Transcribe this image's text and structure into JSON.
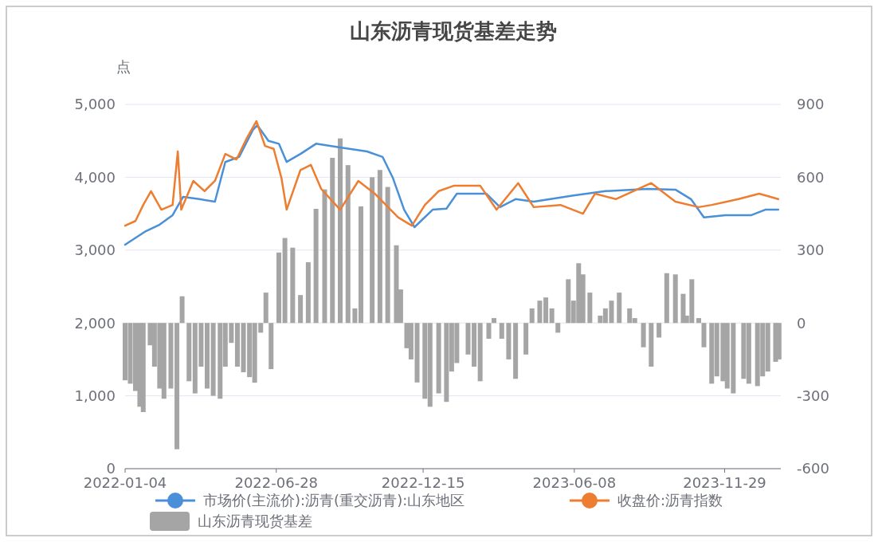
{
  "chart_data": {
    "type": "line",
    "title": "山东沥青现货基差走势",
    "ylabel": "点",
    "xlim": [
      "2022-01-04",
      "2024-02-02"
    ],
    "xticks": [
      "2022-01-04",
      "2022-06-28",
      "2022-12-15",
      "2023-06-08",
      "2023-11-29"
    ],
    "ylim": [
      0,
      5000
    ],
    "yticks": [
      {
        "value": 0,
        "label": "0"
      },
      {
        "value": 1000,
        "label": "1,000"
      },
      {
        "value": 2000,
        "label": "2,000"
      },
      {
        "value": 3000,
        "label": "3,000"
      },
      {
        "value": 4000,
        "label": "4,000"
      },
      {
        "value": 5000,
        "label": "5,000"
      }
    ],
    "y2lim": [
      -600,
      900
    ],
    "y2ticks": [
      -600,
      -300,
      0,
      300,
      600,
      900
    ],
    "grid": "y",
    "legend": "bottom",
    "line_style": "solid",
    "series": [
      {
        "name": "山东沥青现货基差",
        "type": "bar",
        "axis": "y2",
        "color": "#a5a5a5",
        "x": [
          "2022-01-04",
          "2022-01-10",
          "2022-01-16",
          "2022-01-21",
          "2022-01-25",
          "2022-02-02",
          "2022-02-07",
          "2022-02-13",
          "2022-02-18",
          "2022-02-26",
          "2022-03-05",
          "2022-03-11",
          "2022-03-19",
          "2022-03-26",
          "2022-04-02",
          "2022-04-09",
          "2022-04-16",
          "2022-04-24",
          "2022-04-30",
          "2022-05-07",
          "2022-05-14",
          "2022-05-21",
          "2022-05-28",
          "2022-06-03",
          "2022-06-10",
          "2022-06-16",
          "2022-06-22",
          "2022-07-01",
          "2022-07-08",
          "2022-07-17",
          "2022-07-26",
          "2022-08-04",
          "2022-08-13",
          "2022-08-23",
          "2022-09-01",
          "2022-09-10",
          "2022-09-19",
          "2022-09-27",
          "2022-10-04",
          "2022-10-17",
          "2022-10-26",
          "2022-11-04",
          "2022-11-14",
          "2022-11-19",
          "2022-11-26",
          "2022-12-01",
          "2022-12-08",
          "2022-12-17",
          "2022-12-23",
          "2023-01-02",
          "2023-01-11",
          "2023-01-17",
          "2023-01-23",
          "2023-02-05",
          "2023-02-12",
          "2023-02-19",
          "2023-03-01",
          "2023-03-07",
          "2023-03-16",
          "2023-03-24",
          "2023-04-01",
          "2023-04-13",
          "2023-04-20",
          "2023-04-29",
          "2023-05-06",
          "2023-05-13",
          "2023-05-20",
          "2023-06-01",
          "2023-06-07",
          "2023-06-13",
          "2023-06-18",
          "2023-06-26",
          "2023-07-08",
          "2023-07-14",
          "2023-07-21",
          "2023-07-30",
          "2023-08-11",
          "2023-08-17",
          "2023-08-27",
          "2023-09-05",
          "2023-09-14",
          "2023-09-23",
          "2023-10-03",
          "2023-10-12",
          "2023-10-16",
          "2023-10-22",
          "2023-10-30",
          "2023-11-05",
          "2023-11-14",
          "2023-11-20",
          "2023-11-27",
          "2023-12-02",
          "2023-12-09",
          "2023-12-21",
          "2023-12-27",
          "2024-01-06",
          "2024-01-12",
          "2024-01-18",
          "2024-01-27",
          "2024-01-31"
        ],
        "values": [
          -236,
          -250,
          -280,
          -345,
          -367,
          -92,
          -180,
          -270,
          -312,
          -270,
          -520,
          110,
          -240,
          -290,
          -180,
          -270,
          -300,
          -312,
          -180,
          -82,
          -180,
          -203,
          -223,
          -246,
          -40,
          125,
          -190,
          290,
          350,
          310,
          115,
          250,
          470,
          550,
          680,
          760,
          650,
          60,
          480,
          600,
          630,
          560,
          320,
          138,
          -104,
          -150,
          -245,
          -312,
          -345,
          -290,
          -325,
          -200,
          -165,
          -130,
          -180,
          -240,
          -65,
          20,
          -65,
          -150,
          -230,
          -130,
          60,
          92,
          105,
          60,
          -40,
          180,
          92,
          246,
          200,
          125,
          30,
          60,
          92,
          125,
          60,
          20,
          -100,
          -180,
          -60,
          205,
          200,
          120,
          30,
          180,
          20,
          -100,
          -250,
          -220,
          -240,
          -270,
          -290,
          -230,
          -250,
          -260,
          -220,
          -200,
          -160,
          -150
        ]
      },
      {
        "name": "市场价(主流价):沥青(重交沥青):山东地区",
        "color": "#4a90d9",
        "x": [
          "2022-01-04",
          "2022-01-28",
          "2022-02-13",
          "2022-02-28",
          "2022-03-12",
          "2022-03-31",
          "2022-04-18",
          "2022-04-30",
          "2022-05-16",
          "2022-06-01",
          "2022-06-06",
          "2022-06-19",
          "2022-07-01",
          "2022-07-10",
          "2022-07-26",
          "2022-08-13",
          "2022-09-10",
          "2022-10-11",
          "2022-10-29",
          "2022-11-10",
          "2022-11-23",
          "2022-12-05",
          "2022-12-26",
          "2023-01-11",
          "2023-01-23",
          "2023-02-26",
          "2023-03-14",
          "2023-04-01",
          "2023-04-22",
          "2023-06-07",
          "2023-07-14",
          "2023-09-01",
          "2023-10-03",
          "2023-10-21",
          "2023-11-05",
          "2023-11-30",
          "2023-12-30",
          "2024-01-15",
          "2024-01-30"
        ],
        "values": [
          3075,
          3260,
          3350,
          3480,
          3730,
          3700,
          3665,
          4210,
          4280,
          4650,
          4715,
          4500,
          4460,
          4210,
          4320,
          4460,
          4410,
          4355,
          4280,
          3990,
          3555,
          3315,
          3555,
          3570,
          3775,
          3775,
          3590,
          3700,
          3665,
          3750,
          3810,
          3840,
          3830,
          3700,
          3450,
          3480,
          3480,
          3555,
          3555
        ]
      },
      {
        "name": "收盘价:沥青指数",
        "color": "#ed7d31",
        "x": [
          "2022-01-04",
          "2022-01-16",
          "2022-01-25",
          "2022-02-03",
          "2022-02-15",
          "2022-02-28",
          "2022-03-06",
          "2022-03-10",
          "2022-03-24",
          "2022-04-06",
          "2022-04-18",
          "2022-04-30",
          "2022-05-13",
          "2022-05-25",
          "2022-06-05",
          "2022-06-15",
          "2022-06-25",
          "2022-07-04",
          "2022-07-10",
          "2022-07-26",
          "2022-08-07",
          "2022-08-19",
          "2022-09-10",
          "2022-10-01",
          "2022-10-20",
          "2022-11-16",
          "2022-12-02",
          "2022-12-17",
          "2023-01-02",
          "2023-01-20",
          "2023-02-19",
          "2023-03-10",
          "2023-04-04",
          "2023-04-22",
          "2023-05-23",
          "2023-06-18",
          "2023-07-02",
          "2023-07-26",
          "2023-09-05",
          "2023-10-03",
          "2023-10-30",
          "2023-11-14",
          "2023-12-15",
          "2024-01-08",
          "2024-01-30"
        ],
        "values": [
          3335,
          3400,
          3620,
          3810,
          3555,
          3620,
          4355,
          3555,
          3950,
          3810,
          3950,
          4320,
          4245,
          4540,
          4770,
          4430,
          4390,
          3990,
          3555,
          4100,
          4170,
          3840,
          3555,
          3950,
          3775,
          3450,
          3335,
          3620,
          3810,
          3885,
          3885,
          3555,
          3920,
          3590,
          3620,
          3500,
          3775,
          3700,
          3920,
          3665,
          3590,
          3620,
          3700,
          3775,
          3700
        ]
      }
    ]
  }
}
